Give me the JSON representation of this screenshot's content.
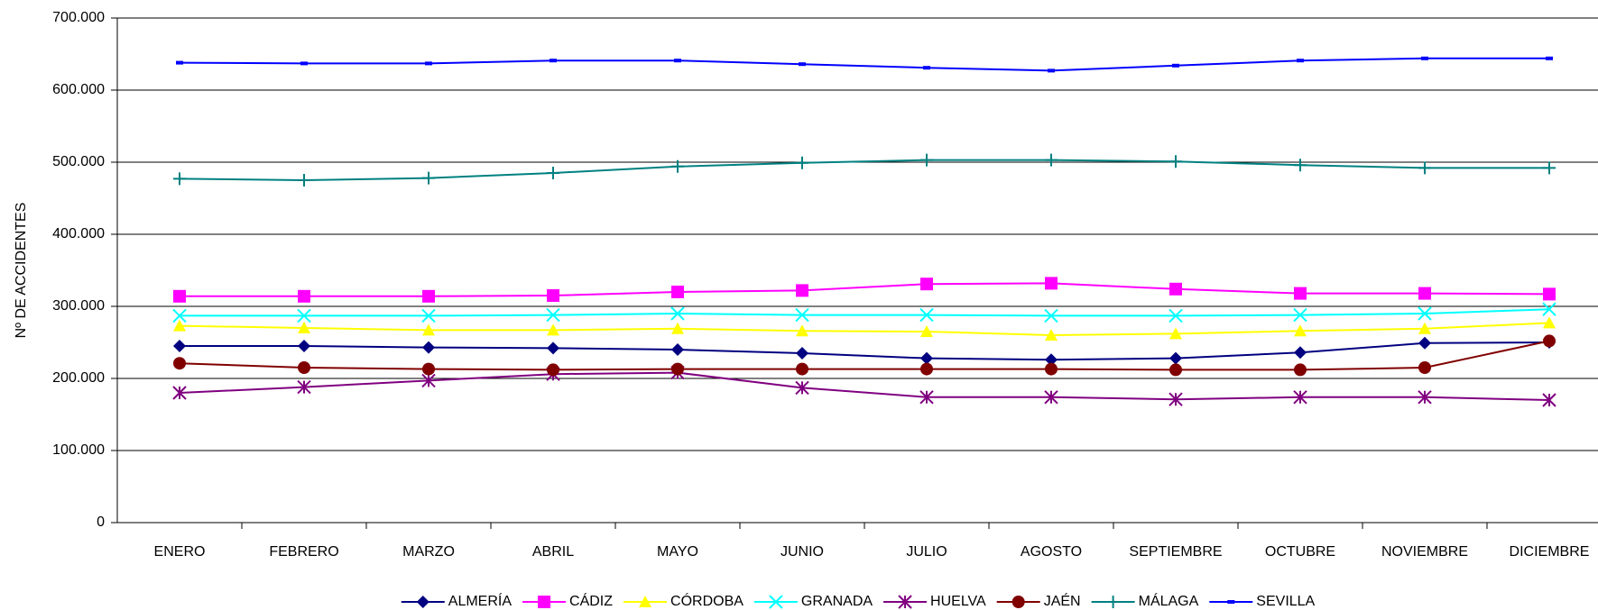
{
  "chart_data": {
    "type": "line",
    "y_label": "Nº DE ACCIDENTES",
    "categories": [
      "ENERO",
      "FEBRERO",
      "MARZO",
      "ABRIL",
      "MAYO",
      "JUNIO",
      "JULIO",
      "AGOSTO",
      "SEPTIEMBRE",
      "OCTUBRE",
      "NOVIEMBRE",
      "DICIEMBRE"
    ],
    "ylim": [
      0,
      700000
    ],
    "yticks": [
      0,
      {
        "value": 100000,
        "label": "100.000"
      },
      {
        "value": 200000,
        "label": "200.000"
      },
      {
        "value": 300000,
        "label": "300.000"
      },
      {
        "value": 400000,
        "label": "400.000"
      },
      {
        "value": 500000,
        "label": "500.000"
      },
      {
        "value": 600000,
        "label": "600.000"
      },
      {
        "value": 700000,
        "label": "700.000"
      }
    ],
    "grid": true,
    "legend": "bottom",
    "series": [
      {
        "name": "ALMERÍA",
        "color": "#000080",
        "marker": "diamond",
        "values": [
          245000,
          245000,
          243000,
          242000,
          240000,
          235000,
          228000,
          226000,
          228000,
          236000,
          249000,
          250000
        ]
      },
      {
        "name": "CÁDIZ",
        "color": "#ff00ff",
        "marker": "square",
        "values": [
          314000,
          314000,
          314000,
          315000,
          320000,
          322000,
          331000,
          332000,
          324000,
          318000,
          318000,
          317000
        ]
      },
      {
        "name": "CÓRDOBA",
        "color": "#ffff00",
        "marker": "triangle",
        "values": [
          273000,
          270000,
          267000,
          267000,
          269000,
          266000,
          265000,
          260000,
          262000,
          266000,
          269000,
          277000
        ]
      },
      {
        "name": "GRANADA",
        "color": "#00ffff",
        "marker": "x",
        "values": [
          287000,
          287000,
          287000,
          288000,
          290000,
          288000,
          288000,
          287000,
          287000,
          288000,
          290000,
          296000
        ]
      },
      {
        "name": "HUELVA",
        "color": "#800080",
        "marker": "star",
        "values": [
          180000,
          188000,
          197000,
          206000,
          208000,
          187000,
          174000,
          174000,
          171000,
          174000,
          174000,
          170000
        ]
      },
      {
        "name": "JAÉN",
        "color": "#800000",
        "marker": "circle",
        "values": [
          221000,
          215000,
          213000,
          212000,
          213000,
          213000,
          213000,
          213000,
          212000,
          212000,
          215000,
          252000
        ]
      },
      {
        "name": "MÁLAGA",
        "color": "#008080",
        "marker": "plus",
        "values": [
          477000,
          475000,
          478000,
          485000,
          494000,
          499000,
          503000,
          503000,
          501000,
          496000,
          492000,
          492000
        ]
      },
      {
        "name": "SEVILLA",
        "color": "#0000ff",
        "marker": "dash",
        "values": [
          638000,
          637000,
          637000,
          641000,
          641000,
          636000,
          631000,
          627000,
          634000,
          641000,
          644000,
          644000
        ]
      }
    ]
  }
}
